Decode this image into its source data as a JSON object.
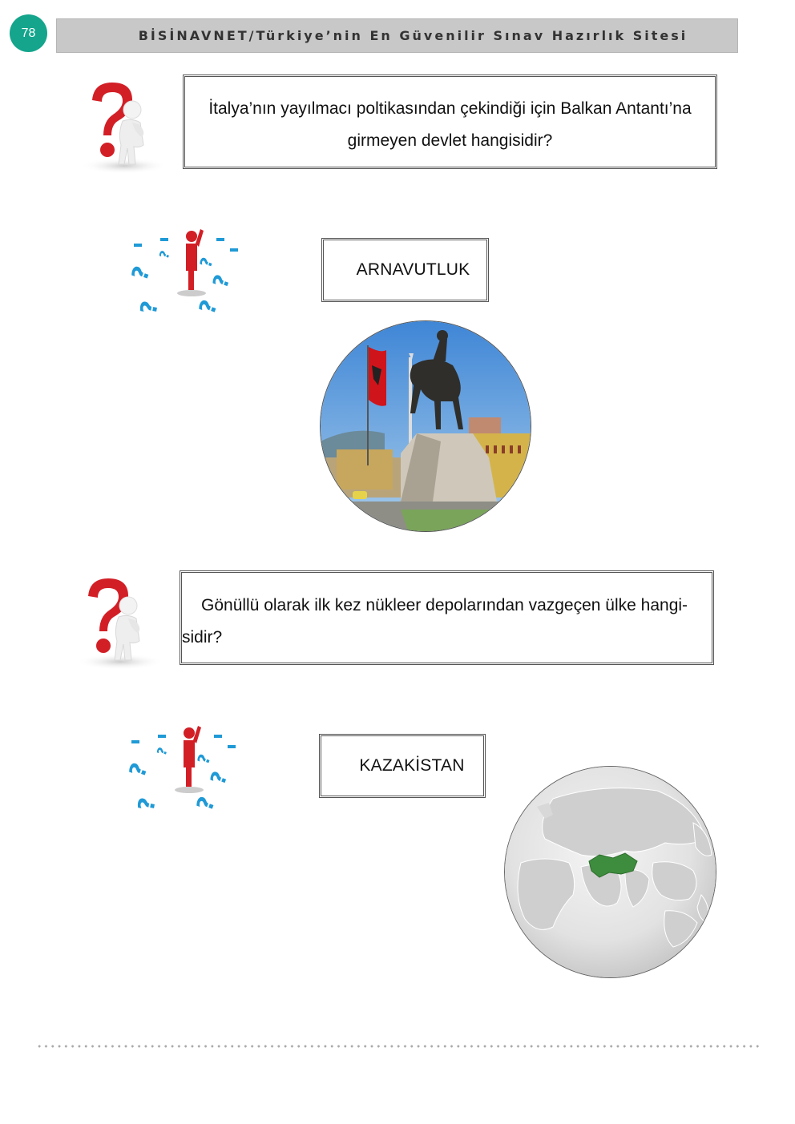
{
  "page": {
    "number": "78"
  },
  "header": {
    "title": "BİSİNAVNET/Türkiye’nin En Güvenilir Sınav Hazırlık Sitesi"
  },
  "questions": [
    {
      "text_line1": "İtalya’nın yayılmacı poltikasından çekindiği için Balkan Antantı’na",
      "text_line2": "girmeyen devlet hangisidir?",
      "answer": "ARNAVUTLUK"
    },
    {
      "text_line1": "Gönüllü olarak ilk kez nükleer depolarından vazgeçen ülke hangi-",
      "text_line2": "sidir?",
      "answer": "KAZAKİSTAN"
    }
  ],
  "icons": {
    "question_person": "thinking-person-question-mark-icon",
    "answer_person": "person-among-question-marks-icon"
  },
  "colors": {
    "badge": "#14a58c",
    "header_bg": "#c8c8c8",
    "question_red": "#d21f26",
    "question_blue": "#1f9ad6",
    "kazakhstan_green": "#3e8d3e"
  }
}
